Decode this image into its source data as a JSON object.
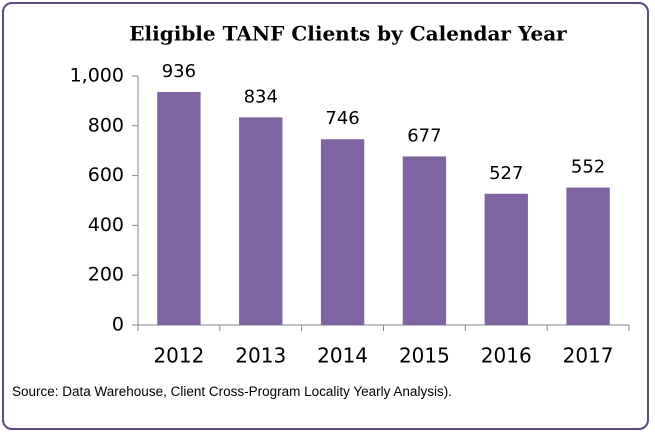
{
  "chart_data": {
    "type": "bar",
    "title": "Eligible TANF Clients by Calendar Year",
    "categories": [
      "2012",
      "2013",
      "2014",
      "2015",
      "2016",
      "2017"
    ],
    "values": [
      936,
      834,
      746,
      677,
      527,
      552
    ],
    "color": "#8064a2",
    "ylim": [
      0,
      1000
    ],
    "yticks": [
      0,
      200,
      400,
      600,
      800,
      {
        "value": 1000,
        "label": "1,000"
      }
    ],
    "grid": false,
    "note": "Source: Data Warehouse, Client Cross-Program Locality Yearly Analysis)."
  }
}
